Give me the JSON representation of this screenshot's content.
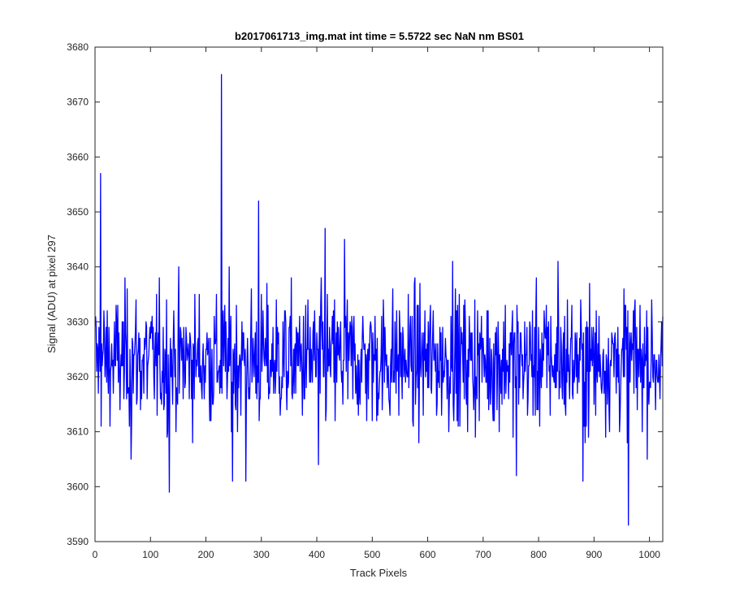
{
  "chart_data": {
    "type": "line",
    "title": "b2017061713_img.mat int time = 5.5722 sec  NaN nm BS01",
    "xlabel": "Track Pixels",
    "ylabel": "Signal (ADU) at pixel 297",
    "xlim": [
      0,
      1024
    ],
    "ylim": [
      3590,
      3680
    ],
    "xticks": [
      0,
      100,
      200,
      300,
      400,
      500,
      600,
      700,
      800,
      900,
      1000
    ],
    "yticks": [
      3590,
      3600,
      3610,
      3620,
      3630,
      3640,
      3650,
      3660,
      3670,
      3680
    ],
    "grid": false,
    "legend": "none",
    "line_color": "#0000ff",
    "series": [
      {
        "x_start": 1,
        "x_step": 1,
        "approx_mean": 3623,
        "approx_noise_std": 6,
        "peaks": [
          {
            "x": 10,
            "y": 3657
          },
          {
            "x": 228,
            "y": 3675
          },
          {
            "x": 295,
            "y": 3652
          },
          {
            "x": 415,
            "y": 3647
          },
          {
            "x": 450,
            "y": 3645
          },
          {
            "x": 645,
            "y": 3641
          },
          {
            "x": 835,
            "y": 3641
          }
        ],
        "troughs": [
          {
            "x": 65,
            "y": 3605
          },
          {
            "x": 134,
            "y": 3599
          },
          {
            "x": 248,
            "y": 3601
          },
          {
            "x": 272,
            "y": 3601
          },
          {
            "x": 403,
            "y": 3604
          },
          {
            "x": 760,
            "y": 3602
          },
          {
            "x": 880,
            "y": 3601
          },
          {
            "x": 962,
            "y": 3593
          }
        ]
      }
    ]
  }
}
